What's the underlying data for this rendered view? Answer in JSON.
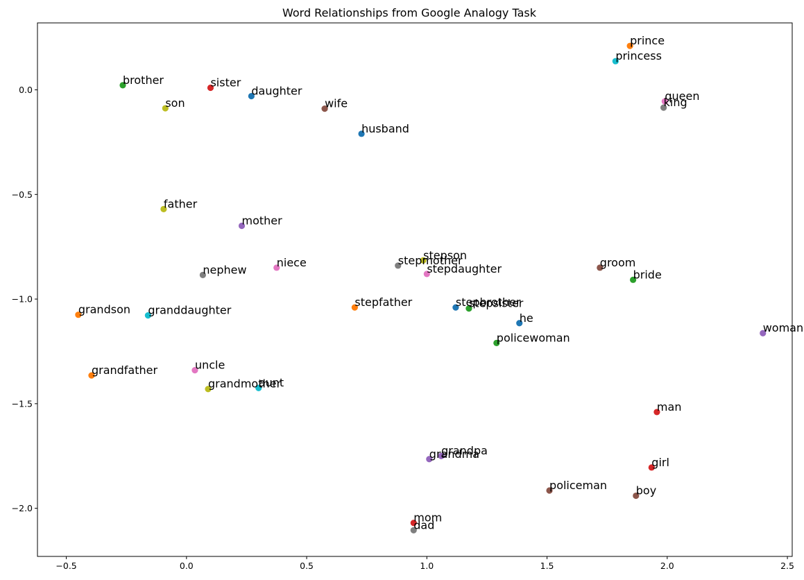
{
  "chart_data": {
    "type": "scatter",
    "title": "Word Relationships from Google Analogy Task",
    "xlabel": "",
    "ylabel": "",
    "xlim": [
      -0.62,
      2.52
    ],
    "ylim": [
      -2.23,
      0.32
    ],
    "xticks": [
      -0.5,
      0.0,
      0.5,
      1.0,
      1.5,
      2.0,
      2.5
    ],
    "xtick_labels": [
      "−0.5",
      "0.0",
      "0.5",
      "1.0",
      "1.5",
      "2.0",
      "2.5"
    ],
    "yticks": [
      0.0,
      -0.5,
      -1.0,
      -1.5,
      -2.0
    ],
    "ytick_labels": [
      "0.0",
      "−0.5",
      "−1.0",
      "−1.5",
      "−2.0"
    ],
    "grid": false,
    "legend": "none",
    "points": [
      {
        "word": "prince",
        "x": 1.845,
        "y": 0.21,
        "color": "#ff7f0e"
      },
      {
        "word": "princess",
        "x": 1.785,
        "y": 0.137,
        "color": "#17becf"
      },
      {
        "word": "queen",
        "x": 1.99,
        "y": -0.055,
        "color": "#e377c2"
      },
      {
        "word": "king",
        "x": 1.985,
        "y": -0.085,
        "color": "#7f7f7f"
      },
      {
        "word": "brother",
        "x": -0.265,
        "y": 0.022,
        "color": "#2ca02c"
      },
      {
        "word": "sister",
        "x": 0.1,
        "y": 0.01,
        "color": "#d62728"
      },
      {
        "word": "daughter",
        "x": 0.27,
        "y": -0.03,
        "color": "#1f77b4"
      },
      {
        "word": "son",
        "x": -0.088,
        "y": -0.088,
        "color": "#bcbd22"
      },
      {
        "word": "wife",
        "x": 0.575,
        "y": -0.09,
        "color": "#8c564b"
      },
      {
        "word": "husband",
        "x": 0.728,
        "y": -0.21,
        "color": "#1f77b4"
      },
      {
        "word": "father",
        "x": -0.095,
        "y": -0.57,
        "color": "#bcbd22"
      },
      {
        "word": "mother",
        "x": 0.23,
        "y": -0.65,
        "color": "#9467bd"
      },
      {
        "word": "nephew",
        "x": 0.068,
        "y": -0.885,
        "color": "#7f7f7f"
      },
      {
        "word": "niece",
        "x": 0.375,
        "y": -0.85,
        "color": "#e377c2"
      },
      {
        "word": "stepmother",
        "x": 0.88,
        "y": -0.84,
        "color": "#7f7f7f"
      },
      {
        "word": "stepson",
        "x": 0.985,
        "y": -0.815,
        "color": "#bcbd22"
      },
      {
        "word": "stepdaughter",
        "x": 1.0,
        "y": -0.88,
        "color": "#e377c2"
      },
      {
        "word": "groom",
        "x": 1.72,
        "y": -0.85,
        "color": "#8c564b"
      },
      {
        "word": "bride",
        "x": 1.858,
        "y": -0.908,
        "color": "#2ca02c"
      },
      {
        "word": "grandson",
        "x": -0.45,
        "y": -1.075,
        "color": "#ff7f0e"
      },
      {
        "word": "granddaughter",
        "x": -0.16,
        "y": -1.078,
        "color": "#17becf"
      },
      {
        "word": "stepfather",
        "x": 0.7,
        "y": -1.04,
        "color": "#ff7f0e"
      },
      {
        "word": "stepbrother",
        "x": 1.12,
        "y": -1.04,
        "color": "#1f77b4"
      },
      {
        "word": "stepsister",
        "x": 1.175,
        "y": -1.045,
        "color": "#2ca02c"
      },
      {
        "word": "he",
        "x": 1.385,
        "y": -1.115,
        "color": "#1f77b4"
      },
      {
        "word": "woman",
        "x": 2.398,
        "y": -1.163,
        "color": "#9467bd"
      },
      {
        "word": "policewoman",
        "x": 1.29,
        "y": -1.21,
        "color": "#2ca02c"
      },
      {
        "word": "grandfather",
        "x": -0.395,
        "y": -1.365,
        "color": "#ff7f0e"
      },
      {
        "word": "uncle",
        "x": 0.035,
        "y": -1.34,
        "color": "#e377c2"
      },
      {
        "word": "grandmother",
        "x": 0.09,
        "y": -1.43,
        "color": "#bcbd22"
      },
      {
        "word": "aunt",
        "x": 0.3,
        "y": -1.425,
        "color": "#17becf"
      },
      {
        "word": "man",
        "x": 1.957,
        "y": -1.54,
        "color": "#d62728"
      },
      {
        "word": "grandpa",
        "x": 1.06,
        "y": -1.75,
        "color": "#9467bd"
      },
      {
        "word": "grandma",
        "x": 1.01,
        "y": -1.765,
        "color": "#9467bd"
      },
      {
        "word": "girl",
        "x": 1.935,
        "y": -1.805,
        "color": "#d62728"
      },
      {
        "word": "policeman",
        "x": 1.51,
        "y": -1.915,
        "color": "#8c564b"
      },
      {
        "word": "boy",
        "x": 1.87,
        "y": -1.94,
        "color": "#8c564b"
      },
      {
        "word": "mom",
        "x": 0.945,
        "y": -2.07,
        "color": "#d62728"
      },
      {
        "word": "dad",
        "x": 0.945,
        "y": -2.105,
        "color": "#7f7f7f"
      }
    ]
  }
}
